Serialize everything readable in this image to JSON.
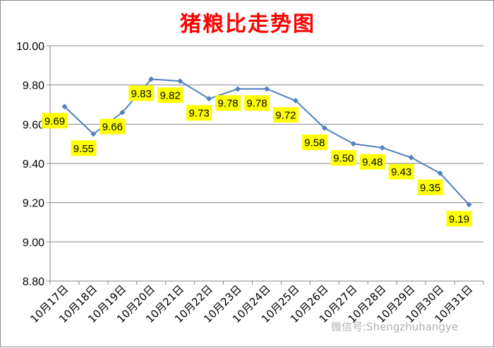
{
  "chart_data": {
    "type": "line",
    "title": "猪粮比走势图",
    "xlabel": "",
    "ylabel": "",
    "categories": [
      "10月17日",
      "10月18日",
      "10月19日",
      "10月20日",
      "10月21日",
      "10月22日",
      "10月23日",
      "10月24日",
      "10月25日",
      "10月26日",
      "10月27日",
      "10月28日",
      "10月29日",
      "10月30日",
      "10月31日"
    ],
    "values": [
      9.69,
      9.55,
      9.66,
      9.83,
      9.82,
      9.73,
      9.78,
      9.78,
      9.72,
      9.58,
      9.5,
      9.48,
      9.43,
      9.35,
      9.19
    ],
    "value_labels": [
      "9.69",
      "9.55",
      "9.66",
      "9.83",
      "9.82",
      "9.73",
      "9.78",
      "9.78",
      "9.72",
      "9.58",
      "9.50",
      "9.48",
      "9.43",
      "9.35",
      "9.19"
    ],
    "ylim": [
      8.8,
      10.0
    ],
    "yticks": [
      "8.80",
      "9.00",
      "9.20",
      "9.40",
      "9.60",
      "9.80",
      "10.00"
    ],
    "grid": true,
    "legend": "none",
    "colors": {
      "line": "#4f81bd",
      "label_bg": "#ffff00",
      "title": "#ff0000",
      "grid": "#868686"
    }
  },
  "watermark": "微信号:Shengzhuhangye"
}
